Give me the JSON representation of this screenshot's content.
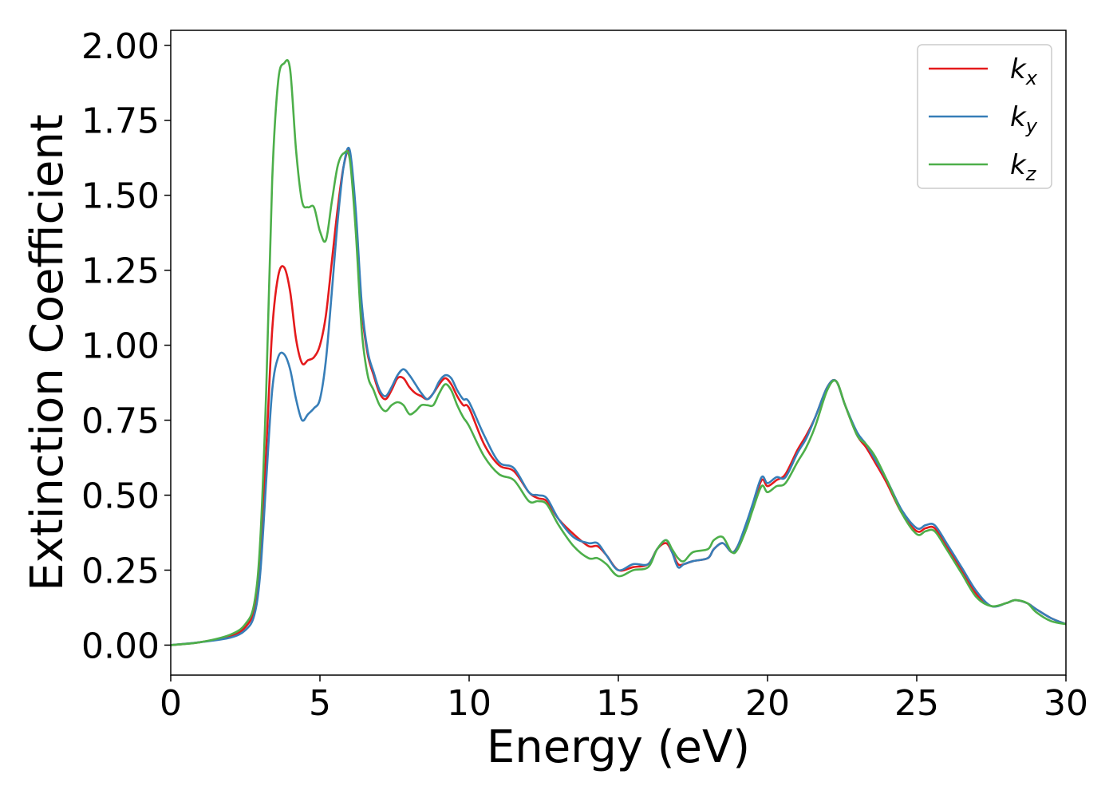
{
  "chart_data": {
    "type": "line",
    "title": "",
    "xlabel": "Energy (eV)",
    "ylabel": "Extinction Coefficient",
    "xlim": [
      0,
      30
    ],
    "ylim": [
      -0.1,
      2.05
    ],
    "xticks": [
      0,
      5,
      10,
      15,
      20,
      25,
      30
    ],
    "xtick_labels": [
      "0",
      "5",
      "10",
      "15",
      "20",
      "25",
      "30"
    ],
    "yticks": [
      0,
      0.25,
      0.5,
      0.75,
      1.0,
      1.25,
      1.5,
      1.75,
      2.0
    ],
    "ytick_labels": [
      "0.00",
      "0.25",
      "0.50",
      "0.75",
      "1.00",
      "1.25",
      "1.50",
      "1.75",
      "2.00"
    ],
    "grid": false,
    "legend_position": "top-right",
    "x": [
      0,
      1,
      2,
      2.5,
      2.8,
      3.0,
      3.2,
      3.4,
      3.6,
      3.8,
      4.0,
      4.2,
      4.4,
      4.6,
      4.8,
      5.0,
      5.2,
      5.4,
      5.6,
      5.8,
      6.0,
      6.2,
      6.4,
      6.6,
      6.8,
      7.0,
      7.2,
      7.4,
      7.6,
      7.8,
      8.0,
      8.2,
      8.4,
      8.6,
      8.8,
      9.0,
      9.2,
      9.4,
      9.6,
      9.8,
      10.0,
      10.5,
      11.0,
      11.5,
      12.0,
      12.3,
      12.6,
      13.0,
      13.5,
      14.0,
      14.3,
      14.6,
      15.0,
      15.5,
      16.0,
      16.3,
      16.6,
      16.8,
      17.0,
      17.2,
      17.5,
      18.0,
      18.2,
      18.5,
      18.8,
      19.0,
      19.3,
      19.5,
      19.8,
      20.0,
      20.3,
      20.6,
      21.0,
      21.3,
      21.6,
      22.0,
      22.3,
      22.6,
      23.0,
      23.3,
      23.6,
      24.0,
      24.5,
      25.0,
      25.3,
      25.6,
      26.0,
      26.5,
      27.0,
      27.5,
      28.0,
      28.3,
      28.7,
      29.0,
      29.5,
      30.0
    ],
    "series": [
      {
        "name": "k_x",
        "label_base": "k",
        "label_sub": "x",
        "color": "#e41a1c",
        "values": [
          0.0,
          0.01,
          0.03,
          0.06,
          0.12,
          0.28,
          0.65,
          1.05,
          1.23,
          1.26,
          1.18,
          1.02,
          0.94,
          0.95,
          0.96,
          1.0,
          1.1,
          1.28,
          1.46,
          1.6,
          1.64,
          1.42,
          1.12,
          0.97,
          0.9,
          0.84,
          0.82,
          0.85,
          0.89,
          0.89,
          0.86,
          0.84,
          0.83,
          0.82,
          0.84,
          0.87,
          0.89,
          0.87,
          0.83,
          0.8,
          0.79,
          0.67,
          0.6,
          0.58,
          0.51,
          0.49,
          0.48,
          0.42,
          0.37,
          0.33,
          0.33,
          0.3,
          0.25,
          0.26,
          0.27,
          0.32,
          0.34,
          0.31,
          0.27,
          0.27,
          0.28,
          0.29,
          0.32,
          0.34,
          0.31,
          0.33,
          0.4,
          0.46,
          0.55,
          0.53,
          0.55,
          0.57,
          0.65,
          0.7,
          0.76,
          0.86,
          0.88,
          0.8,
          0.7,
          0.66,
          0.61,
          0.54,
          0.44,
          0.38,
          0.39,
          0.39,
          0.33,
          0.25,
          0.17,
          0.13,
          0.14,
          0.15,
          0.14,
          0.12,
          0.09,
          0.07
        ]
      },
      {
        "name": "k_y",
        "label_base": "k",
        "label_sub": "y",
        "color": "#377eb8",
        "values": [
          0.0,
          0.01,
          0.025,
          0.05,
          0.1,
          0.24,
          0.55,
          0.85,
          0.96,
          0.97,
          0.92,
          0.82,
          0.75,
          0.77,
          0.79,
          0.82,
          0.95,
          1.18,
          1.42,
          1.6,
          1.65,
          1.45,
          1.14,
          0.98,
          0.91,
          0.85,
          0.83,
          0.86,
          0.9,
          0.92,
          0.9,
          0.87,
          0.84,
          0.82,
          0.84,
          0.88,
          0.9,
          0.89,
          0.85,
          0.82,
          0.81,
          0.7,
          0.61,
          0.59,
          0.51,
          0.5,
          0.49,
          0.42,
          0.36,
          0.34,
          0.34,
          0.3,
          0.25,
          0.27,
          0.27,
          0.32,
          0.35,
          0.31,
          0.26,
          0.27,
          0.28,
          0.29,
          0.32,
          0.34,
          0.31,
          0.33,
          0.41,
          0.47,
          0.56,
          0.54,
          0.56,
          0.56,
          0.64,
          0.69,
          0.76,
          0.86,
          0.88,
          0.8,
          0.71,
          0.67,
          0.62,
          0.55,
          0.45,
          0.39,
          0.4,
          0.4,
          0.34,
          0.26,
          0.18,
          0.13,
          0.14,
          0.15,
          0.14,
          0.12,
          0.09,
          0.07
        ]
      },
      {
        "name": "k_z",
        "label_base": "k",
        "label_sub": "z",
        "color": "#4daf4a",
        "values": [
          0.0,
          0.01,
          0.035,
          0.07,
          0.14,
          0.35,
          0.85,
          1.55,
          1.88,
          1.94,
          1.92,
          1.65,
          1.48,
          1.46,
          1.46,
          1.38,
          1.35,
          1.48,
          1.6,
          1.64,
          1.62,
          1.38,
          1.05,
          0.9,
          0.85,
          0.8,
          0.78,
          0.8,
          0.81,
          0.8,
          0.77,
          0.78,
          0.8,
          0.8,
          0.8,
          0.84,
          0.87,
          0.85,
          0.8,
          0.76,
          0.73,
          0.63,
          0.57,
          0.55,
          0.48,
          0.48,
          0.47,
          0.4,
          0.33,
          0.29,
          0.29,
          0.27,
          0.23,
          0.25,
          0.26,
          0.32,
          0.35,
          0.32,
          0.29,
          0.28,
          0.31,
          0.32,
          0.35,
          0.36,
          0.31,
          0.32,
          0.39,
          0.45,
          0.53,
          0.51,
          0.53,
          0.54,
          0.61,
          0.66,
          0.73,
          0.85,
          0.88,
          0.8,
          0.7,
          0.67,
          0.63,
          0.55,
          0.44,
          0.37,
          0.38,
          0.38,
          0.32,
          0.24,
          0.16,
          0.13,
          0.14,
          0.15,
          0.14,
          0.11,
          0.08,
          0.07
        ]
      }
    ]
  }
}
